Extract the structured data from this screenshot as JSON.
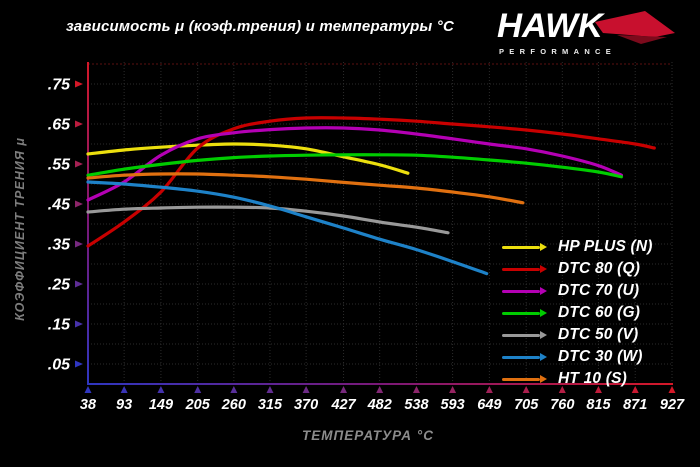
{
  "header": {
    "title": "зависимость μ (коэф.трения) и температуры °C",
    "logo": {
      "brand": "HAWK",
      "sub": "PERFORMANCE",
      "wing_color": "#c8102e",
      "wing_shadow": "#7c0a1c"
    }
  },
  "colors": {
    "background": "#000000",
    "grid": "#2b2b2b",
    "grid_top": "#4a0e0e",
    "axis_red": "#d41828",
    "axis_blue": "#2f36c0",
    "axis_mid": "#7a1878",
    "tick_label": "#ffffff",
    "axis_title": "#8c8c8c"
  },
  "chart_data": {
    "type": "line",
    "title": "зависимость μ (коэф.трения) и температуры °C",
    "xlabel": "ТЕМПЕРАТУРА °C",
    "ylabel": "КОЭФФИЦИЕНТ ТРЕНИЯ μ",
    "xlim": [
      38,
      927
    ],
    "ylim": [
      0,
      0.805
    ],
    "grid": true,
    "legend_position": "right-bottom",
    "x_ticks": [
      38,
      93,
      149,
      205,
      260,
      315,
      370,
      427,
      482,
      538,
      593,
      649,
      705,
      760,
      815,
      871,
      927
    ],
    "y_ticks": [
      {
        "value": 0.75,
        "label": ".75"
      },
      {
        "value": 0.65,
        "label": ".65"
      },
      {
        "value": 0.55,
        "label": ".55"
      },
      {
        "value": 0.45,
        "label": ".45"
      },
      {
        "value": 0.35,
        "label": ".35"
      },
      {
        "value": 0.25,
        "label": ".25"
      },
      {
        "value": 0.15,
        "label": ".15"
      },
      {
        "value": 0.05,
        "label": ".05"
      }
    ],
    "series": [
      {
        "name": "HP PLUS (N)",
        "color": "#ecdf0e",
        "points": [
          [
            38,
            0.575
          ],
          [
            93,
            0.585
          ],
          [
            149,
            0.592
          ],
          [
            205,
            0.597
          ],
          [
            260,
            0.6
          ],
          [
            315,
            0.597
          ],
          [
            370,
            0.588
          ],
          [
            427,
            0.568
          ],
          [
            482,
            0.548
          ],
          [
            525,
            0.527
          ]
        ]
      },
      {
        "name": "DTC 80 (Q)",
        "color": "#c80000",
        "points": [
          [
            38,
            0.345
          ],
          [
            93,
            0.405
          ],
          [
            149,
            0.48
          ],
          [
            205,
            0.59
          ],
          [
            260,
            0.638
          ],
          [
            315,
            0.657
          ],
          [
            370,
            0.665
          ],
          [
            427,
            0.665
          ],
          [
            482,
            0.662
          ],
          [
            538,
            0.657
          ],
          [
            593,
            0.65
          ],
          [
            649,
            0.643
          ],
          [
            705,
            0.635
          ],
          [
            760,
            0.625
          ],
          [
            815,
            0.613
          ],
          [
            871,
            0.6
          ],
          [
            900,
            0.59
          ]
        ]
      },
      {
        "name": "DTC 70 (U)",
        "color": "#b400b4",
        "points": [
          [
            38,
            0.46
          ],
          [
            93,
            0.505
          ],
          [
            149,
            0.572
          ],
          [
            205,
            0.613
          ],
          [
            260,
            0.628
          ],
          [
            315,
            0.636
          ],
          [
            370,
            0.64
          ],
          [
            427,
            0.64
          ],
          [
            482,
            0.635
          ],
          [
            538,
            0.625
          ],
          [
            593,
            0.613
          ],
          [
            649,
            0.6
          ],
          [
            705,
            0.588
          ],
          [
            760,
            0.57
          ],
          [
            815,
            0.546
          ],
          [
            850,
            0.522
          ]
        ]
      },
      {
        "name": "DTC 60 (G)",
        "color": "#00cc00",
        "points": [
          [
            38,
            0.522
          ],
          [
            93,
            0.537
          ],
          [
            149,
            0.549
          ],
          [
            205,
            0.559
          ],
          [
            260,
            0.566
          ],
          [
            315,
            0.57
          ],
          [
            370,
            0.572
          ],
          [
            427,
            0.573
          ],
          [
            482,
            0.573
          ],
          [
            538,
            0.572
          ],
          [
            593,
            0.567
          ],
          [
            649,
            0.56
          ],
          [
            705,
            0.552
          ],
          [
            760,
            0.542
          ],
          [
            815,
            0.53
          ],
          [
            850,
            0.518
          ]
        ]
      },
      {
        "name": "DTC 50 (V)",
        "color": "#999999",
        "points": [
          [
            38,
            0.43
          ],
          [
            93,
            0.437
          ],
          [
            149,
            0.44
          ],
          [
            205,
            0.442
          ],
          [
            260,
            0.442
          ],
          [
            315,
            0.44
          ],
          [
            370,
            0.432
          ],
          [
            427,
            0.42
          ],
          [
            482,
            0.405
          ],
          [
            538,
            0.392
          ],
          [
            586,
            0.378
          ]
        ]
      },
      {
        "name": "DTC 30 (W)",
        "color": "#1e82c8",
        "points": [
          [
            38,
            0.505
          ],
          [
            93,
            0.5
          ],
          [
            149,
            0.492
          ],
          [
            205,
            0.482
          ],
          [
            260,
            0.467
          ],
          [
            315,
            0.445
          ],
          [
            370,
            0.418
          ],
          [
            427,
            0.39
          ],
          [
            482,
            0.362
          ],
          [
            538,
            0.336
          ],
          [
            593,
            0.306
          ],
          [
            645,
            0.276
          ]
        ]
      },
      {
        "name": "HT 10 (S)",
        "color": "#e07010",
        "points": [
          [
            38,
            0.515
          ],
          [
            93,
            0.522
          ],
          [
            149,
            0.525
          ],
          [
            205,
            0.525
          ],
          [
            260,
            0.522
          ],
          [
            315,
            0.518
          ],
          [
            370,
            0.512
          ],
          [
            427,
            0.504
          ],
          [
            482,
            0.497
          ],
          [
            538,
            0.49
          ],
          [
            593,
            0.48
          ],
          [
            649,
            0.468
          ],
          [
            700,
            0.453
          ]
        ]
      }
    ]
  }
}
